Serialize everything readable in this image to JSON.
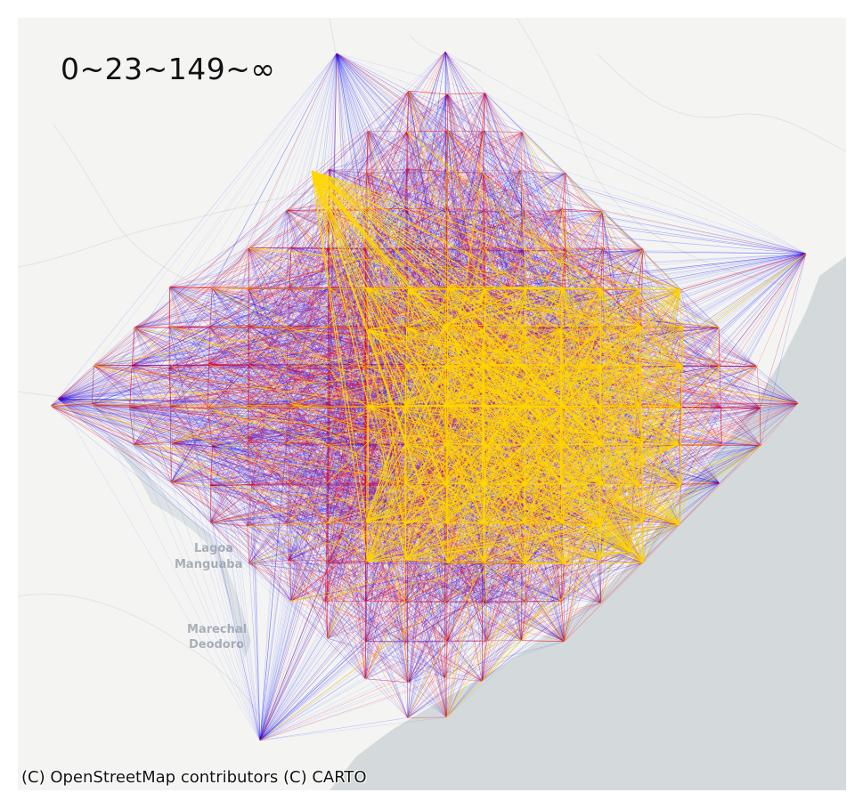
{
  "map": {
    "legend_title": "0~23~149~∞",
    "attribution": "(C) OpenStreetMap contributors (C) CARTO",
    "place_labels": [
      "Lagoa",
      "Manguaba",
      "Marechal",
      "Deodoro"
    ],
    "basemap": "CARTO light",
    "colors": {
      "land": "#f4f5f3",
      "water": "#d4dadc",
      "low": "#0000ff",
      "mid": "#ff0000",
      "high": "#ffd700"
    }
  }
}
